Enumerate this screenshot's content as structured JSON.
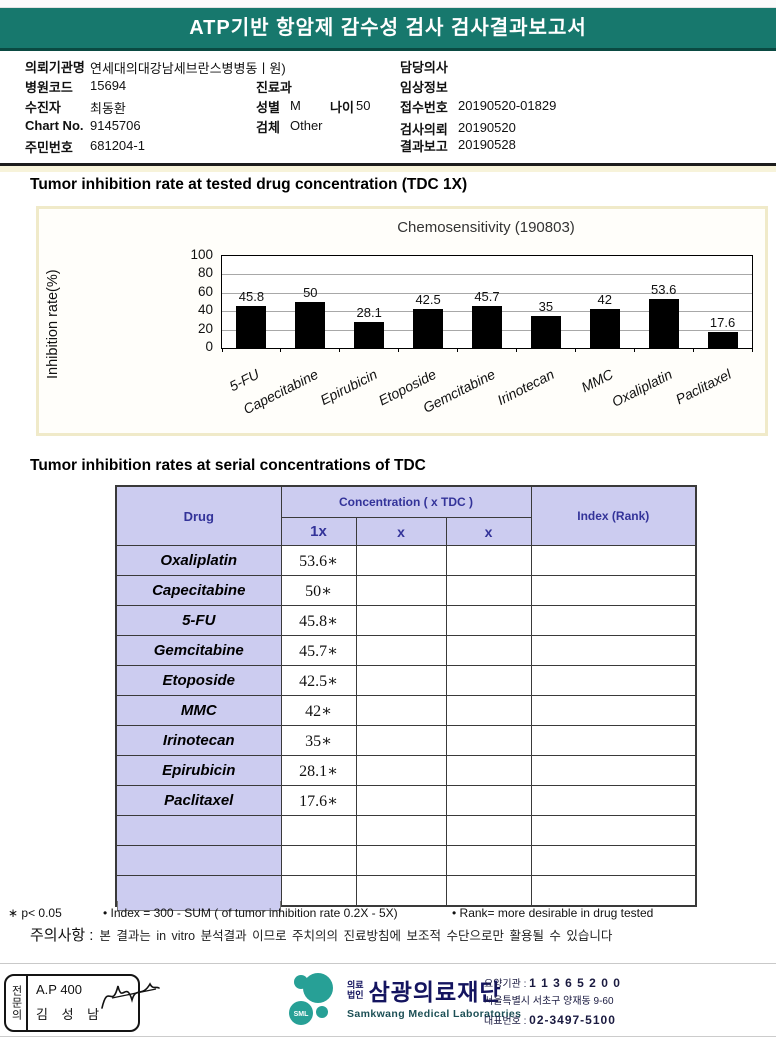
{
  "header": {
    "title": "ATP기반 항암제 감수성 검사 검사결과보고서"
  },
  "patient": {
    "org_label": "의뢰기관명",
    "org_value": "연세대의대강남세브란스병병동ㅣ원)",
    "hospital_code_label": "병원코드",
    "hospital_code": "15694",
    "name_label": "수진자",
    "name": "최동환",
    "chart_no_label": "Chart No.",
    "chart_no": "9145706",
    "resident_id_label": "주민번호",
    "resident_id": "681204-1",
    "dept_label": "진료과",
    "sex_label": "성별",
    "sex": "M",
    "age_label": "나이",
    "age": "50",
    "specimen_label": "검체",
    "specimen": "Other",
    "doctor_label": "담당의사",
    "clinical_label": "임상정보",
    "receipt_label": "접수번호",
    "receipt_no": "20190520-01829",
    "request_label": "검사의뢰",
    "request_date": "20190520",
    "report_label": "결과보고",
    "report_date": "20190528"
  },
  "sections": {
    "chart_section_title": "Tumor inhibition rate at tested drug concentration (TDC 1X)",
    "table_section_title": "Tumor inhibition rates at serial concentrations of TDC"
  },
  "chart_data": {
    "type": "bar",
    "title": "Chemosensitivity (190803)",
    "ylabel": "Inhibition rate(%)",
    "ylim": [
      0,
      100
    ],
    "yticks": [
      0,
      20,
      40,
      60,
      80,
      100
    ],
    "grid": true,
    "legend": "none",
    "bar_color": "#000000",
    "categories": [
      "5-FU",
      "Capecitabine",
      "Epirubicin",
      "Etoposide",
      "Gemcitabine",
      "Irinotecan",
      "MMC",
      "Oxaliplatin",
      "Paclitaxel"
    ],
    "values": [
      45.8,
      50,
      28.1,
      42.5,
      45.7,
      35,
      42,
      53.6,
      17.6
    ]
  },
  "table": {
    "headers": {
      "drug": "Drug",
      "concentration": "Concentration ( x TDC )",
      "c1": "1x",
      "c2": "x",
      "c3": "x",
      "index": "Index (Rank)"
    },
    "rows": [
      {
        "drug": "Oxaliplatin",
        "v1": "53.6∗",
        "v2": "",
        "v3": "",
        "index": ""
      },
      {
        "drug": "Capecitabine",
        "v1": "50∗",
        "v2": "",
        "v3": "",
        "index": ""
      },
      {
        "drug": "5-FU",
        "v1": "45.8∗",
        "v2": "",
        "v3": "",
        "index": ""
      },
      {
        "drug": "Gemcitabine",
        "v1": "45.7∗",
        "v2": "",
        "v3": "",
        "index": ""
      },
      {
        "drug": "Etoposide",
        "v1": "42.5∗",
        "v2": "",
        "v3": "",
        "index": ""
      },
      {
        "drug": "MMC",
        "v1": "42∗",
        "v2": "",
        "v3": "",
        "index": ""
      },
      {
        "drug": "Irinotecan",
        "v1": "35∗",
        "v2": "",
        "v3": "",
        "index": ""
      },
      {
        "drug": "Epirubicin",
        "v1": "28.1∗",
        "v2": "",
        "v3": "",
        "index": ""
      },
      {
        "drug": "Paclitaxel",
        "v1": "17.6∗",
        "v2": "",
        "v3": "",
        "index": ""
      },
      {
        "drug": "",
        "v1": "",
        "v2": "",
        "v3": "",
        "index": ""
      },
      {
        "drug": "",
        "v1": "",
        "v2": "",
        "v3": "",
        "index": ""
      },
      {
        "drug": "",
        "v1": "",
        "v2": "",
        "v3": "",
        "index": ""
      }
    ]
  },
  "notes": {
    "pvalue": "∗ p< 0.05",
    "index_note": "• Index = 300 - SUM ( of tumor inhibition rate 0.2X  -  5X)",
    "rank_note": "• Rank= more desirable in drug tested",
    "caution_label": "주의사항",
    "caution_colon": ":",
    "caution_text": "본 결과는 in vitro 분석결과 이므로 주치의의 진료방침에 보조적 수단으로만 활용될 수 있습니다"
  },
  "footer": {
    "stamp": {
      "side_label": "전문의",
      "line1": "A.P 400",
      "line2": "김 성 남"
    },
    "logo": {
      "mark_text": "SML",
      "org_type": "의료\n법인",
      "org_name": "삼광의료재단",
      "org_en": "Samkwang Medical Laboratories"
    },
    "corp": {
      "line1_label": "요양기관 :",
      "line1_value": "1 1 3 6 5 2 0 0",
      "line2": "서울특별시 서초구 양재동 9-60",
      "line3_label": "대표번호 :",
      "line3_value": "02-3497-5100"
    }
  },
  "colors": {
    "header_teal": "#17786d",
    "table_header_bg": "#ccccf0",
    "table_header_text": "#333399",
    "bar_color": "#000000",
    "logo_teal": "#27a096",
    "logo_navy": "#14145f"
  }
}
